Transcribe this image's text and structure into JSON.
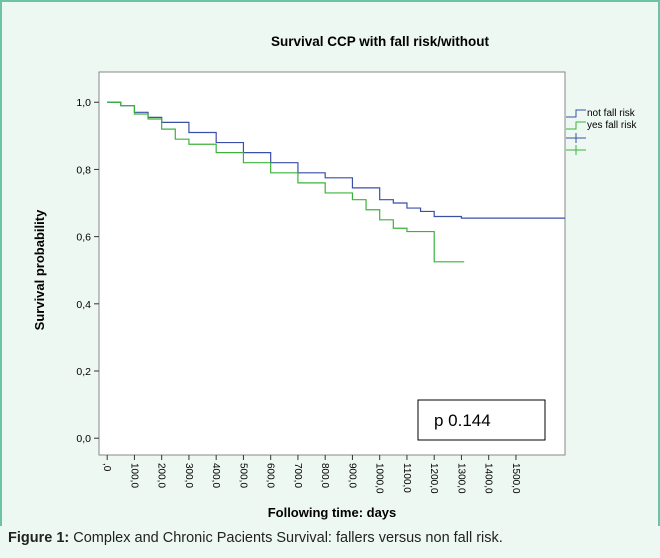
{
  "chart_data": {
    "type": "line",
    "step": true,
    "title": "Survival CCP with fall risk/without",
    "x_label": "Following time: days",
    "y_label": "Survival probability",
    "annotation": "p 0.144",
    "xlim": [
      -30,
      1680
    ],
    "ylim": [
      -0.05,
      1.09
    ],
    "xticks": [
      {
        "value": 0,
        "label": ",0"
      },
      {
        "value": 100,
        "label": "100,0"
      },
      {
        "value": 200,
        "label": "200,0"
      },
      {
        "value": 300,
        "label": "300,0"
      },
      {
        "value": 400,
        "label": "400,0"
      },
      {
        "value": 500,
        "label": "500,0"
      },
      {
        "value": 600,
        "label": "600,0"
      },
      {
        "value": 700,
        "label": "700,0"
      },
      {
        "value": 800,
        "label": "800,0"
      },
      {
        "value": 900,
        "label": "900,0"
      },
      {
        "value": 1000,
        "label": "1000,0"
      },
      {
        "value": 1100,
        "label": "1100,0"
      },
      {
        "value": 1200,
        "label": "1200,0"
      },
      {
        "value": 1300,
        "label": "1300,0"
      },
      {
        "value": 1400,
        "label": "1400,0"
      },
      {
        "value": 1500,
        "label": "1500,0"
      }
    ],
    "yticks": [
      {
        "value": 0,
        "label": "0,0"
      },
      {
        "value": 0.2,
        "label": "0,2"
      },
      {
        "value": 0.4,
        "label": "0,4"
      },
      {
        "value": 0.6,
        "label": "0,6"
      },
      {
        "value": 0.8,
        "label": "0,8"
      },
      {
        "value": 1,
        "label": "1,0"
      }
    ],
    "series": [
      {
        "name": "not fall risk",
        "color": "#3a4fa8",
        "x": [
          0,
          50,
          100,
          150,
          200,
          300,
          400,
          500,
          600,
          700,
          800,
          900,
          1000,
          1050,
          1100,
          1150,
          1200,
          1300,
          1680
        ],
        "values": [
          1.0,
          0.99,
          0.97,
          0.955,
          0.94,
          0.91,
          0.88,
          0.85,
          0.82,
          0.79,
          0.775,
          0.745,
          0.71,
          0.7,
          0.685,
          0.675,
          0.66,
          0.655,
          0.655
        ]
      },
      {
        "name": "yes fall risk",
        "color": "#3bb33b",
        "x": [
          0,
          50,
          100,
          150,
          200,
          250,
          300,
          400,
          500,
          600,
          700,
          800,
          900,
          950,
          1000,
          1050,
          1100,
          1150,
          1200,
          1310
        ],
        "values": [
          1.0,
          0.99,
          0.965,
          0.95,
          0.92,
          0.89,
          0.875,
          0.85,
          0.82,
          0.79,
          0.76,
          0.73,
          0.71,
          0.68,
          0.65,
          0.625,
          0.615,
          0.615,
          0.525,
          0.525
        ]
      }
    ]
  },
  "caption": {
    "label": "Figure 1:",
    "text": "Complex and Chronic Pacients Survival: fallers versus non fall risk."
  }
}
